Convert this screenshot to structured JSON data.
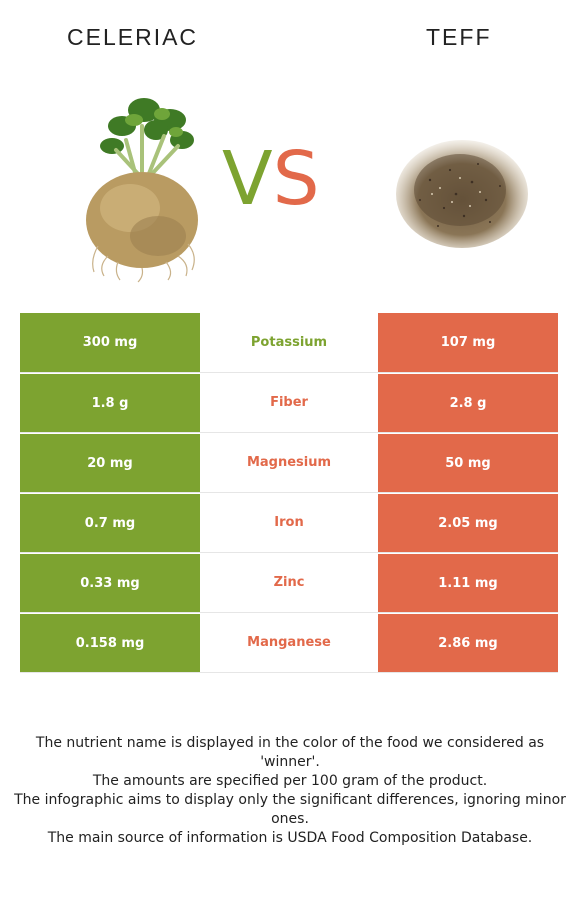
{
  "header": {
    "left_food": "CELERIAC",
    "right_food": "TEFF",
    "vs_v": "V",
    "vs_s": "S"
  },
  "colors": {
    "left_winner": "#7da330",
    "right_winner": "#e2694a"
  },
  "rows": [
    {
      "left": "300 mg",
      "nutrient": "Potassium",
      "right": "107 mg",
      "winner": "left"
    },
    {
      "left": "1.8 g",
      "nutrient": "Fiber",
      "right": "2.8 g",
      "winner": "right"
    },
    {
      "left": "20 mg",
      "nutrient": "Magnesium",
      "right": "50 mg",
      "winner": "right"
    },
    {
      "left": "0.7 mg",
      "nutrient": "Iron",
      "right": "2.05 mg",
      "winner": "right"
    },
    {
      "left": "0.33 mg",
      "nutrient": "Zinc",
      "right": "1.11 mg",
      "winner": "right"
    },
    {
      "left": "0.158 mg",
      "nutrient": "Manganese",
      "right": "2.86 mg",
      "winner": "right"
    }
  ],
  "footer": {
    "line1": "The nutrient name is displayed in the color of the food we considered as 'winner'.",
    "line2": "The amounts are specified per 100 gram of the product.",
    "line3": "The infographic aims to display only the significant differences, ignoring minor ones.",
    "line4": "The main source of information is USDA Food Composition Database."
  }
}
